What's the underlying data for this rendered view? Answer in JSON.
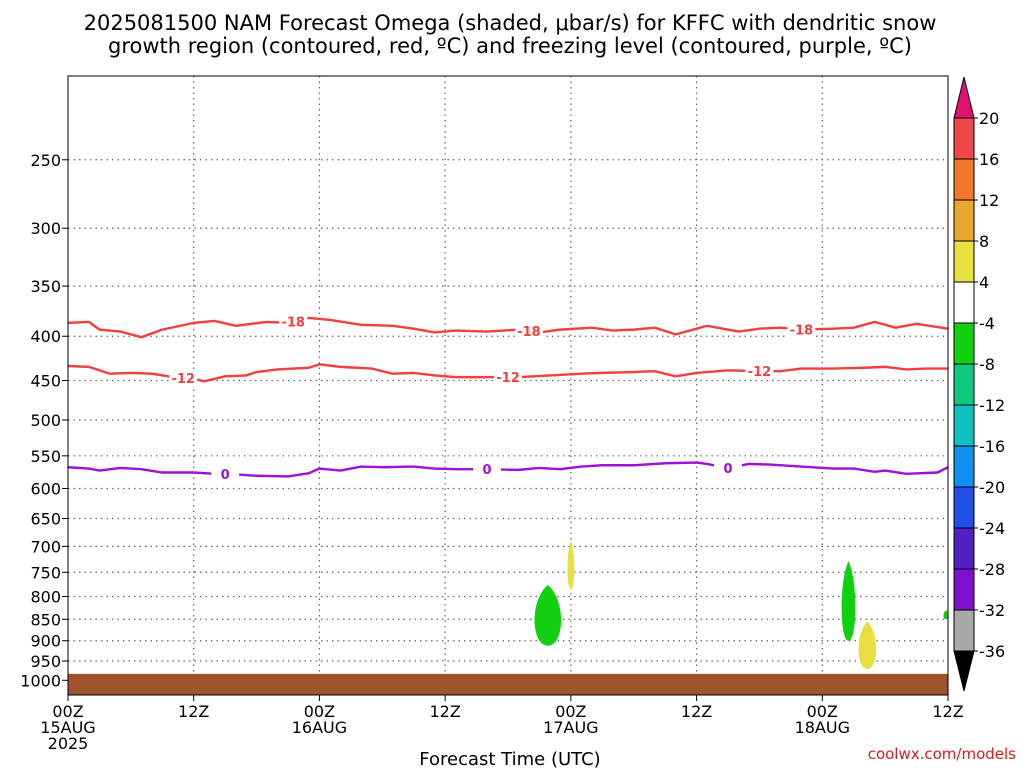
{
  "chart_data": {
    "type": "contour-time-height",
    "title_lines": [
      "2025081500 NAM Forecast Omega (shaded, μbar/s) for KFFC with dendritic snow",
      "growth region (contoured, red, ºC) and freezing level (contoured, purple, ºC)"
    ],
    "xlabel": "Forecast Time (UTC)",
    "credit": "coolwx.com/models",
    "x_range_hours": [
      0,
      84
    ],
    "x_ticks": [
      {
        "h": 0,
        "l1": "00Z",
        "l2": "15AUG",
        "l3": "2025"
      },
      {
        "h": 12,
        "l1": "12Z",
        "l2": "",
        "l3": ""
      },
      {
        "h": 24,
        "l1": "00Z",
        "l2": "16AUG",
        "l3": ""
      },
      {
        "h": 36,
        "l1": "12Z",
        "l2": "",
        "l3": ""
      },
      {
        "h": 48,
        "l1": "00Z",
        "l2": "17AUG",
        "l3": ""
      },
      {
        "h": 60,
        "l1": "12Z",
        "l2": "",
        "l3": ""
      },
      {
        "h": 72,
        "l1": "00Z",
        "l2": "18AUG",
        "l3": ""
      },
      {
        "h": 84,
        "l1": "12Z",
        "l2": "",
        "l3": ""
      }
    ],
    "y_axis": "pressure (hPa), log scale, inverted",
    "y_range_hpa": [
      200,
      1040
    ],
    "y_ticks": [
      250,
      300,
      350,
      400,
      450,
      500,
      550,
      600,
      650,
      700,
      750,
      800,
      850,
      900,
      950,
      1000
    ],
    "grid": true,
    "contours": [
      {
        "label": "-18",
        "color": "#f04040",
        "label_hours": [
          21.5,
          44,
          70
        ],
        "points": [
          [
            0,
            386
          ],
          [
            2,
            385
          ],
          [
            3,
            393
          ],
          [
            5,
            395
          ],
          [
            7,
            401
          ],
          [
            9,
            393
          ],
          [
            12,
            386
          ],
          [
            14,
            384
          ],
          [
            16,
            389
          ],
          [
            19,
            385
          ],
          [
            21,
            386
          ],
          [
            23,
            381
          ],
          [
            25,
            383
          ],
          [
            28,
            388
          ],
          [
            31,
            389
          ],
          [
            33,
            392
          ],
          [
            35,
            396
          ],
          [
            37,
            394
          ],
          [
            40,
            395
          ],
          [
            43,
            393
          ],
          [
            45,
            396
          ],
          [
            47,
            393
          ],
          [
            50,
            391
          ],
          [
            52,
            394
          ],
          [
            54,
            393
          ],
          [
            56,
            391
          ],
          [
            58,
            398
          ],
          [
            60,
            392
          ],
          [
            61,
            389
          ],
          [
            64,
            395
          ],
          [
            66,
            392
          ],
          [
            68,
            391
          ],
          [
            70,
            393
          ],
          [
            73,
            392
          ],
          [
            75,
            391
          ],
          [
            77,
            385
          ],
          [
            79,
            391
          ],
          [
            81,
            387
          ],
          [
            84,
            392
          ]
        ]
      },
      {
        "label": "-12",
        "color": "#f04040",
        "label_hours": [
          11,
          42,
          66
        ],
        "points": [
          [
            0,
            433
          ],
          [
            2,
            434
          ],
          [
            4,
            442
          ],
          [
            6,
            441
          ],
          [
            8,
            442
          ],
          [
            10,
            446
          ],
          [
            12,
            448
          ],
          [
            13,
            451
          ],
          [
            15,
            445
          ],
          [
            17,
            444
          ],
          [
            18,
            440
          ],
          [
            20,
            437
          ],
          [
            23,
            435
          ],
          [
            24,
            431
          ],
          [
            26,
            434
          ],
          [
            29,
            436
          ],
          [
            31,
            442
          ],
          [
            33,
            441
          ],
          [
            35,
            444
          ],
          [
            37,
            446
          ],
          [
            40,
            446
          ],
          [
            43,
            446
          ],
          [
            46,
            444
          ],
          [
            49,
            442
          ],
          [
            51,
            441
          ],
          [
            54,
            440
          ],
          [
            56,
            439
          ],
          [
            58,
            445
          ],
          [
            60,
            441
          ],
          [
            63,
            438
          ],
          [
            66,
            439
          ],
          [
            68,
            439
          ],
          [
            70,
            436
          ],
          [
            73,
            436
          ],
          [
            76,
            435
          ],
          [
            78,
            434
          ],
          [
            80,
            437
          ],
          [
            82,
            436
          ],
          [
            84,
            436
          ]
        ]
      },
      {
        "label": "0",
        "color": "#a010d8",
        "label_hours": [
          15,
          40,
          63
        ],
        "points": [
          [
            0,
            567
          ],
          [
            2,
            569
          ],
          [
            3,
            572
          ],
          [
            5,
            568
          ],
          [
            7,
            570
          ],
          [
            9,
            575
          ],
          [
            12,
            575
          ],
          [
            14,
            577
          ],
          [
            16,
            578
          ],
          [
            18,
            580
          ],
          [
            21,
            581
          ],
          [
            23,
            576
          ],
          [
            24,
            569
          ],
          [
            26,
            572
          ],
          [
            28,
            566
          ],
          [
            30,
            567
          ],
          [
            33,
            566
          ],
          [
            35,
            569
          ],
          [
            37,
            570
          ],
          [
            40,
            570
          ],
          [
            43,
            571
          ],
          [
            45,
            568
          ],
          [
            47,
            570
          ],
          [
            49,
            566
          ],
          [
            51,
            564
          ],
          [
            54,
            564
          ],
          [
            57,
            561
          ],
          [
            60,
            560
          ],
          [
            61,
            562
          ],
          [
            63,
            568
          ],
          [
            65,
            562
          ],
          [
            67,
            563
          ],
          [
            70,
            566
          ],
          [
            73,
            569
          ],
          [
            75,
            569
          ],
          [
            77,
            574
          ],
          [
            78,
            572
          ],
          [
            80,
            577
          ],
          [
            83,
            575
          ],
          [
            84,
            567
          ]
        ]
      }
    ],
    "shaded_blobs": [
      {
        "value_bin": "-8 to -4",
        "color": "#10d010",
        "hour": 45.8,
        "hour_width": 2.7,
        "p_top": 776,
        "p_bottom": 912
      },
      {
        "value_bin": "4 to 8",
        "color": "#e8e040",
        "hour": 48.0,
        "hour_width": 0.7,
        "p_top": 690,
        "p_bottom": 785
      },
      {
        "value_bin": "-8 to -4",
        "color": "#10d010",
        "hour": 74.5,
        "hour_width": 1.4,
        "p_top": 728,
        "p_bottom": 900
      },
      {
        "value_bin": "4 to 8",
        "color": "#e8e040",
        "hour": 76.3,
        "hour_width": 1.8,
        "p_top": 855,
        "p_bottom": 970
      },
      {
        "value_bin": "-8 to -4",
        "color": "#10d010",
        "hour": 83.8,
        "hour_width": 0.5,
        "p_top": 830,
        "p_bottom": 850
      }
    ],
    "ground": {
      "color": "#a0522d",
      "p_surface": 983
    },
    "colorbar": {
      "labels": [
        "20",
        "16",
        "12",
        "8",
        "4",
        "-4",
        "-8",
        "-12",
        "-16",
        "-20",
        "-24",
        "-28",
        "-32",
        "-36"
      ],
      "colors": [
        "#e01070",
        "#f04848",
        "#f07828",
        "#e8a830",
        "#e8e040",
        "#ffffff",
        "#10d010",
        "#10c880",
        "#10c0c0",
        "#1090f0",
        "#2050e8",
        "#5020c0",
        "#8010d0",
        "#a8a8a8",
        "#000000"
      ]
    }
  }
}
